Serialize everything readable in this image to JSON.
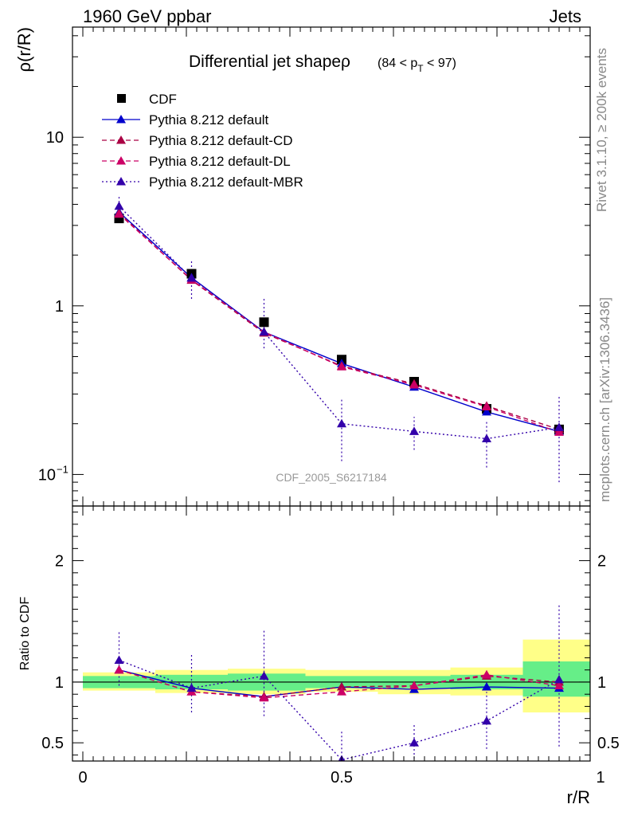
{
  "header": {
    "left": "1960 GeV ppbar",
    "right": "Jets"
  },
  "side_labels": {
    "rivet": "Rivet 3.1.10, ≥ 200k events",
    "mcplots": "mcplots.cern.ch [arXiv:1306.3436]"
  },
  "colors": {
    "cdf": "#000000",
    "default": "#0000cc",
    "cd": "#aa0044",
    "dl": "#cc0066",
    "mbr": "#3300aa",
    "band_inner": "#66ee88",
    "band_outer": "#ffff88"
  },
  "chart_data": [
    {
      "type": "line",
      "scale": "log",
      "title": "Differential jet shapeρ",
      "title_range": {
        "open": "(84 < p",
        "sub": "T",
        "close": " < 97)"
      },
      "ylabel": "ρ(r/R)",
      "watermark": "CDF_2005_S6217184",
      "xlim": [
        0,
        1
      ],
      "ylim": [
        0.065,
        45
      ],
      "ytick_labels": [
        {
          "value": 0.1,
          "label": "10",
          "sup": "−1"
        },
        {
          "value": 1,
          "label": "1"
        },
        {
          "value": 10,
          "label": "10"
        }
      ],
      "legend": {
        "placement": "top-left"
      },
      "x": [
        0.07,
        0.21,
        0.35,
        0.5,
        0.64,
        0.78,
        0.92
      ],
      "series": [
        {
          "name": "CDF",
          "key": "cdf",
          "style": "markers",
          "values": [
            3.3,
            1.55,
            0.8,
            0.48,
            0.355,
            0.245,
            0.185
          ]
        },
        {
          "name": "Pythia 8.212 default",
          "key": "default",
          "style": "solid",
          "values": [
            3.6,
            1.47,
            0.7,
            0.455,
            0.33,
            0.235,
            0.18
          ],
          "err_low": [],
          "err_high": []
        },
        {
          "name": "Pythia 8.212 default-CD",
          "key": "cd",
          "style": "dashed",
          "values": [
            3.55,
            1.42,
            0.69,
            0.44,
            0.345,
            0.255,
            0.185
          ]
        },
        {
          "name": "Pythia 8.212 default-DL",
          "key": "dl",
          "style": "dashed",
          "values": [
            3.5,
            1.43,
            0.7,
            0.435,
            0.34,
            0.252,
            0.178
          ]
        },
        {
          "name": "Pythia 8.212 default-MBR",
          "key": "mbr",
          "style": "dotted",
          "values": [
            3.9,
            1.46,
            0.7,
            0.2,
            0.18,
            0.163,
            0.19
          ],
          "err_low": [
            3.3,
            1.1,
            0.56,
            0.12,
            0.14,
            0.11,
            0.09
          ],
          "err_high": [
            4.5,
            1.85,
            1.1,
            0.28,
            0.22,
            0.21,
            0.29
          ]
        }
      ]
    },
    {
      "type": "line",
      "ylabel": "Ratio to CDF",
      "xlabel": "r/R",
      "xlim": [
        0,
        1
      ],
      "ylim": [
        0.35,
        2.45
      ],
      "xticks": [
        0,
        0.5,
        1
      ],
      "xtick_labels": [
        "0",
        "0.5",
        "1"
      ],
      "yticks": [
        0.5,
        1,
        2
      ],
      "ytick_labels": [
        "0.5",
        "1",
        "2"
      ],
      "x": [
        0.07,
        0.21,
        0.35,
        0.5,
        0.64,
        0.78,
        0.92
      ],
      "bins": [
        [
          0,
          0.14
        ],
        [
          0.14,
          0.28
        ],
        [
          0.28,
          0.43
        ],
        [
          0.43,
          0.57
        ],
        [
          0.57,
          0.71
        ],
        [
          0.71,
          0.85
        ],
        [
          0.85,
          1.0
        ]
      ],
      "band_inner": [
        [
          0.95,
          1.05
        ],
        [
          0.94,
          1.06
        ],
        [
          0.93,
          1.07
        ],
        [
          0.95,
          1.05
        ],
        [
          0.95,
          1.05
        ],
        [
          0.94,
          1.06
        ],
        [
          0.88,
          1.17
        ]
      ],
      "band_outer": [
        [
          0.93,
          1.08
        ],
        [
          0.91,
          1.1
        ],
        [
          0.9,
          1.11
        ],
        [
          0.92,
          1.1
        ],
        [
          0.9,
          1.1
        ],
        [
          0.89,
          1.12
        ],
        [
          0.75,
          1.35
        ]
      ],
      "series": [
        {
          "name": "Pythia 8.212 default",
          "key": "default",
          "style": "solid",
          "values": [
            1.1,
            0.95,
            0.88,
            0.96,
            0.94,
            0.96,
            0.95
          ]
        },
        {
          "name": "Pythia 8.212 default-CD",
          "key": "cd",
          "style": "dashed",
          "values": [
            1.1,
            0.92,
            0.88,
            0.96,
            0.97,
            1.05,
            1.0
          ]
        },
        {
          "name": "Pythia 8.212 default-DL",
          "key": "dl",
          "style": "dashed",
          "values": [
            1.1,
            0.92,
            0.87,
            0.92,
            0.97,
            1.06,
            0.97
          ]
        },
        {
          "name": "Pythia 8.212 default-MBR",
          "key": "mbr",
          "style": "dotted",
          "values": [
            1.18,
            0.95,
            1.05,
            0.36,
            0.5,
            0.68,
            1.02
          ],
          "err_low": [
            0.97,
            0.75,
            0.72,
            0.25,
            0.37,
            0.45,
            0.47
          ],
          "err_high": [
            1.42,
            1.24,
            1.44,
            0.6,
            0.65,
            0.92,
            1.64
          ]
        }
      ]
    }
  ]
}
